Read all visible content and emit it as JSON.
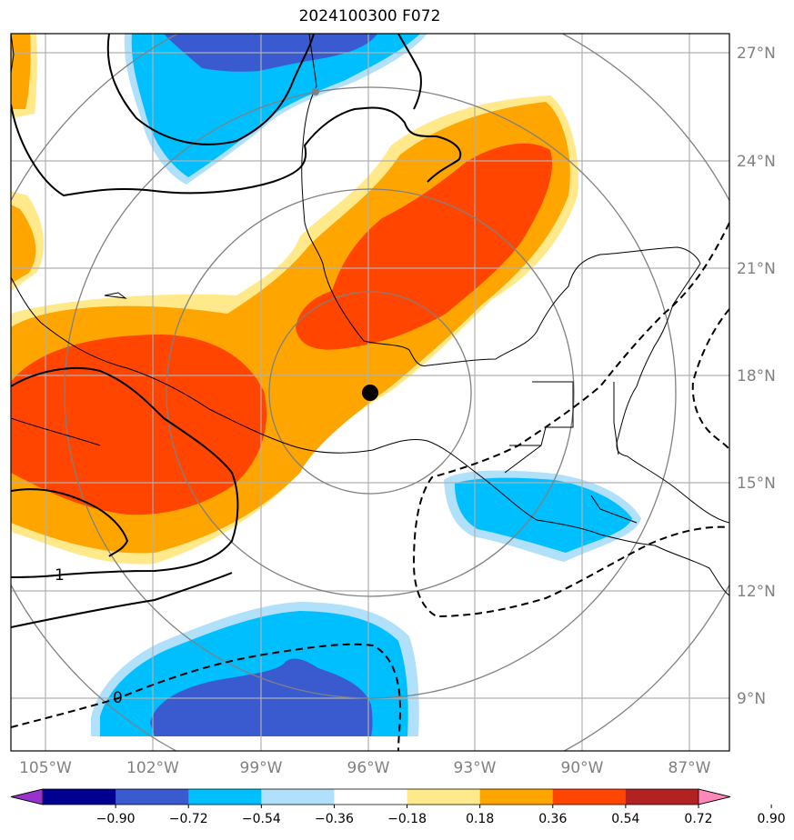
{
  "title": "2024100300 F072",
  "map": {
    "lat_labels": [
      "27°N",
      "24°N",
      "21°N",
      "18°N",
      "15°N",
      "12°N",
      "9°N"
    ],
    "lon_labels": [
      "105°W",
      "102°W",
      "99°W",
      "96°W",
      "93°W",
      "90°W",
      "87°W"
    ],
    "center_marker": {
      "lon": -96.0,
      "lat": 17.5
    },
    "contour_labels": [
      "1",
      "0"
    ]
  },
  "colorbar": {
    "ticks": [
      "−0.90",
      "−0.72",
      "−0.54",
      "−0.36",
      "−0.18",
      "0.18",
      "0.36",
      "0.54",
      "0.72",
      "0.90"
    ],
    "colors": [
      "#9932cc",
      "#000090",
      "#3a5bd0",
      "#00bfff",
      "#b0e0fa",
      "#ffffff",
      "#ffe98a",
      "#ffa500",
      "#ff4500",
      "#b22222",
      "#ff88bb"
    ]
  }
}
